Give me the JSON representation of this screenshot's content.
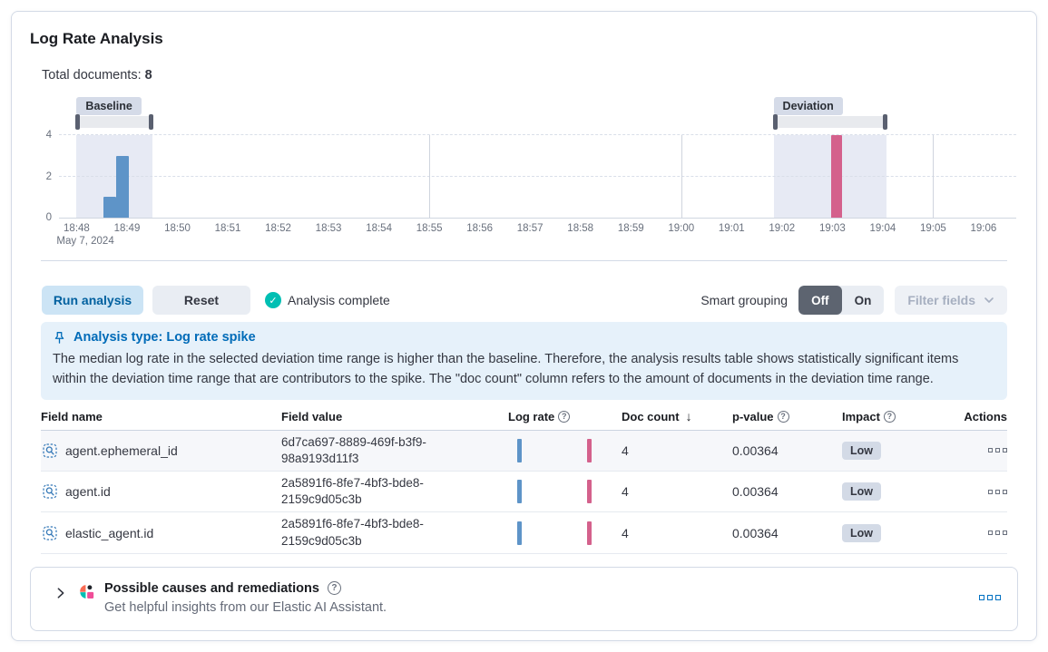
{
  "header": {
    "title": "Log Rate Analysis",
    "total_documents_label": "Total documents:",
    "total_documents_value": "8"
  },
  "chart_data": {
    "type": "bar",
    "x_start": "18:48",
    "x_date_label": "May 7, 2024",
    "ticks": [
      "18:48",
      "18:49",
      "18:50",
      "18:51",
      "18:52",
      "18:53",
      "18:54",
      "18:55",
      "18:56",
      "18:57",
      "18:58",
      "18:59",
      "19:00",
      "19:01",
      "19:02",
      "19:03",
      "19:04",
      "19:05",
      "19:06"
    ],
    "x_gridlines": [
      "18:55",
      "19:00",
      "19:05"
    ],
    "y_ticks": [
      0,
      2,
      4
    ],
    "ylim": [
      0,
      4
    ],
    "baseline": {
      "label": "Baseline",
      "window": [
        "18:48:00",
        "18:49:30"
      ],
      "color": "#5e94c8"
    },
    "deviation": {
      "label": "Deviation",
      "window": [
        "19:01:50",
        "19:04:05"
      ],
      "color": "#d4618c"
    },
    "bars": [
      {
        "time": "18:48:40",
        "value": 1,
        "series": "baseline"
      },
      {
        "time": "18:48:55",
        "value": 3,
        "series": "baseline"
      },
      {
        "time": "19:03:05",
        "value": 4,
        "series": "deviation"
      }
    ]
  },
  "controls": {
    "run_label": "Run analysis",
    "reset_label": "Reset",
    "status_label": "Analysis complete",
    "smart_grouping_label": "Smart grouping",
    "toggle_off": "Off",
    "toggle_on": "On",
    "filter_label": "Filter fields"
  },
  "banner": {
    "title": "Analysis type: Log rate spike",
    "body": "The median log rate in the selected deviation time range is higher than the baseline. Therefore, the analysis results table shows statistically significant items within the deviation time range that are contributors to the spike. The \"doc count\" column refers to the amount of documents in the deviation time range."
  },
  "table": {
    "columns": [
      {
        "label": "Field name"
      },
      {
        "label": "Field value"
      },
      {
        "label": "Log rate",
        "info": true,
        "sortable": true
      },
      {
        "label": "Doc count",
        "sorted": "desc",
        "sortable": true
      },
      {
        "label": "p-value",
        "info": true,
        "sortable": true
      },
      {
        "label": "Impact",
        "info": true,
        "sortable": true
      },
      {
        "label": "Actions",
        "align": "right"
      }
    ],
    "rows": [
      {
        "field_name": "agent.ephemeral_id",
        "field_value": "6d7ca697-8889-469f-b3f9-98a9193d11f3",
        "doc_count": "4",
        "p_value": "0.00364",
        "impact": "Low"
      },
      {
        "field_name": "agent.id",
        "field_value": "2a5891f6-8fe7-4bf3-bde8-2159c9d05c3b",
        "doc_count": "4",
        "p_value": "0.00364",
        "impact": "Low"
      },
      {
        "field_name": "elastic_agent.id",
        "field_value": "2a5891f6-8fe7-4bf3-bde8-2159c9d05c3b",
        "doc_count": "4",
        "p_value": "0.00364",
        "impact": "Low"
      }
    ]
  },
  "insights": {
    "title": "Possible causes and remediations",
    "subtitle": "Get helpful insights from our Elastic AI Assistant."
  },
  "colors": {
    "baseline_bar": "#5e94c8",
    "deviation_bar": "#d4618c",
    "accent_blue": "#0071c2",
    "success_teal": "#00bfb3"
  }
}
